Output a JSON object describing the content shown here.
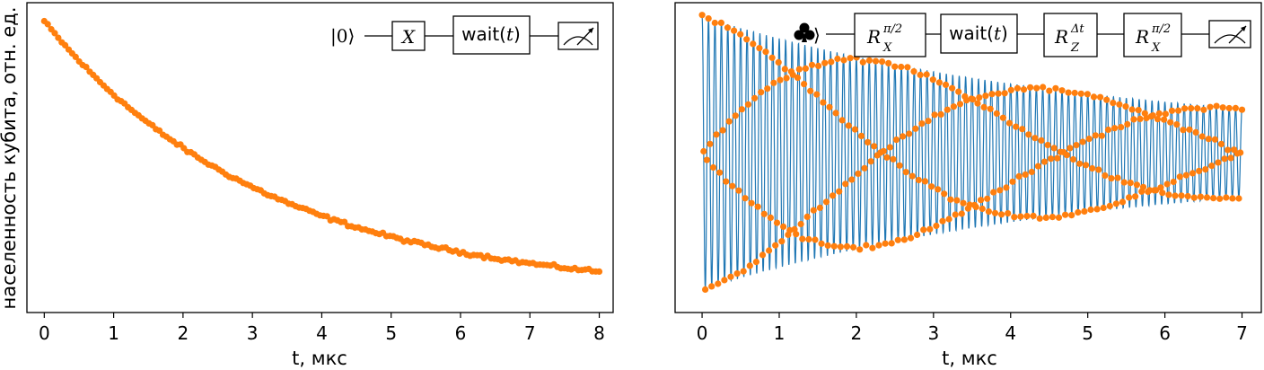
{
  "colors": {
    "fit": "#1f77b4",
    "data": "#ff7f0e",
    "frame": "#000000"
  },
  "chart_data": [
    {
      "type": "scatter",
      "title": "",
      "xlabel": "t, мкс",
      "ylabel": "населенность кубита, отн. ед.",
      "xlim": [
        -0.25,
        8.2
      ],
      "ylim": [
        0.0,
        1.0
      ],
      "x_ticks": [
        "0",
        "1",
        "2",
        "3",
        "4",
        "5",
        "6",
        "7",
        "8"
      ],
      "yticks_visible": false,
      "grid": false,
      "series": [
        {
          "kind": "fit-line",
          "model": "exponential decay",
          "a": 0.88,
          "tau_us": 3.2,
          "offset": 0.06
        },
        {
          "kind": "points",
          "x_start": 0,
          "x_end": 8,
          "count": 160
        }
      ],
      "circuit": {
        "input": "|0⟩",
        "gates": [
          "X",
          "wait(t)",
          "meter-icon"
        ]
      }
    },
    {
      "type": "scatter",
      "title": "",
      "xlabel": "t, мкс",
      "ylabel": "",
      "xlim": [
        -0.35,
        7.25
      ],
      "ylim": [
        -1.0,
        1.0
      ],
      "x_ticks": [
        "0",
        "1",
        "2",
        "3",
        "4",
        "5",
        "6",
        "7"
      ],
      "yticks_visible": false,
      "grid": false,
      "series": [
        {
          "kind": "fit-line",
          "model": "damped oscillation",
          "a": 0.96,
          "tau_us": 5.0,
          "floor": 0.1,
          "freq_mhz": 12.0
        },
        {
          "kind": "points",
          "x_start": 0,
          "x_end": 7,
          "count": 340
        }
      ],
      "circuit": {
        "input": "club-suit-state",
        "gates": [
          "R_X^{π/2}",
          "wait(t)",
          "R_Z^{Δt}",
          "R_X^{π/2}",
          "meter-icon"
        ],
        "gate_labels": [
          {
            "main": "R",
            "sup": "π/2",
            "sub": "X"
          },
          {
            "main": "wait(t)"
          },
          {
            "main": "R",
            "sup": "Δt",
            "sub": "Z"
          },
          {
            "main": "R",
            "sup": "π/2",
            "sub": "X"
          }
        ]
      }
    }
  ],
  "text": {
    "left_xlabel": "t, мкс",
    "right_xlabel": "t, мкс",
    "ylabel": "населенность кубита, отн. ед.",
    "left_ket": "|0⟩",
    "left_gate_x": "X",
    "wait_left": "wait(",
    "wait_t": "t",
    "wait_right": ")",
    "R": "R",
    "sup_pi2": "π/2",
    "sup_dt": "Δt",
    "sub_X": "X",
    "sub_Z": "Z",
    "ket_close": "⟩"
  }
}
